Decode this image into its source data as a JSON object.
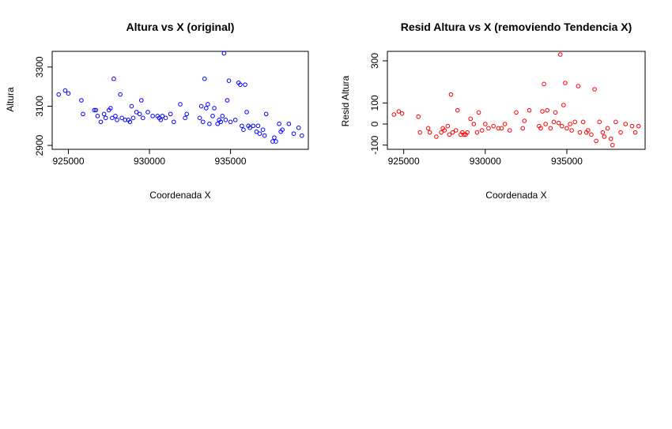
{
  "chart_data": [
    {
      "type": "scatter",
      "title": "Altura vs X (original)",
      "xlabel": "Coordenada X",
      "ylabel": "Altura",
      "xlim": [
        924000,
        939800
      ],
      "ylim": [
        2880,
        3380
      ],
      "xticks": [
        "925000",
        "930000",
        "935000"
      ],
      "xtick_values": [
        925000,
        930000,
        935000
      ],
      "yticks": [
        "2900",
        "3100",
        "3300"
      ],
      "ytick_values": [
        2900,
        3100,
        3300
      ],
      "grid": false,
      "color": "#0000ff",
      "series": [
        {
          "x": [
            924400,
            924800,
            925000,
            925800,
            925900,
            926600,
            926700,
            926800,
            927000,
            927200,
            927300,
            927500,
            927600,
            927700,
            927800,
            927900,
            928000,
            928200,
            928300,
            928500,
            928700,
            928800,
            928900,
            929000,
            929200,
            929400,
            929500,
            929600,
            929900,
            930200,
            930500,
            930600,
            930700,
            930800,
            931000,
            931300,
            931500,
            931900,
            932200,
            932300,
            933100,
            933200,
            933300,
            933400,
            933500,
            933600,
            933700,
            933900,
            934000,
            934200,
            934300,
            934400,
            934500,
            934600,
            934700,
            934800,
            934900,
            935000,
            935300,
            935500,
            935600,
            935700,
            935800,
            935900,
            936000,
            936100,
            936200,
            936400,
            936600,
            936700,
            936800,
            937000,
            937100,
            937200,
            937600,
            937700,
            937800,
            938000,
            938100,
            938200,
            938600,
            938900,
            939200,
            939400
          ],
          "y": [
            3160,
            3180,
            3165,
            3130,
            3060,
            3080,
            3080,
            3050,
            3020,
            3060,
            3040,
            3080,
            3090,
            3040,
            3240,
            3050,
            3030,
            3160,
            3040,
            3030,
            3030,
            3020,
            3100,
            3040,
            3070,
            3060,
            3130,
            3040,
            3070,
            3050,
            3050,
            3040,
            3030,
            3050,
            3040,
            3060,
            3020,
            3110,
            3040,
            3060,
            3040,
            3100,
            3020,
            3240,
            3090,
            3110,
            3010,
            3050,
            3090,
            3010,
            3030,
            3020,
            3050,
            3370,
            3030,
            3130,
            3230,
            3020,
            3030,
            3220,
            3210,
            3000,
            2980,
            3210,
            3070,
            3000,
            2990,
            3000,
            2970,
            3000,
            2960,
            2980,
            2950,
            3060,
            2920,
            2940,
            2920,
            3010,
            2970,
            2980,
            3010,
            2960,
            2990,
            2950
          ]
        }
      ]
    },
    {
      "type": "scatter",
      "title": "Resid Altura vs X (removiendo Tendencia X)",
      "xlabel": "Coordenada X",
      "ylabel": "Resid Altura",
      "xlim": [
        924000,
        939800
      ],
      "ylim": [
        -120,
        345
      ],
      "xticks": [
        "925000",
        "930000",
        "935000"
      ],
      "xtick_values": [
        925000,
        930000,
        935000
      ],
      "yticks": [
        "-100",
        "0",
        "100",
        "300"
      ],
      "ytick_values": [
        -100,
        0,
        100,
        300
      ],
      "grid": false,
      "color": "#ff0000",
      "series": [
        {
          "x": [
            924400,
            924700,
            924900,
            925900,
            926000,
            926500,
            926600,
            927000,
            927300,
            927400,
            927500,
            927700,
            927800,
            927900,
            928000,
            928200,
            928300,
            928500,
            928600,
            928700,
            928800,
            928900,
            929100,
            929300,
            929500,
            929600,
            929800,
            930000,
            930200,
            930500,
            930800,
            931000,
            931200,
            931500,
            931900,
            932300,
            932400,
            932700,
            933300,
            933400,
            933500,
            933600,
            933700,
            933800,
            934000,
            934200,
            934300,
            934500,
            934600,
            934700,
            934800,
            934900,
            935000,
            935200,
            935300,
            935500,
            935700,
            935800,
            936000,
            936200,
            936300,
            936500,
            936700,
            936800,
            937000,
            937200,
            937300,
            937500,
            937700,
            937800,
            938000,
            938300,
            938600,
            939000,
            939200,
            939400
          ],
          "y": [
            45,
            60,
            50,
            35,
            -40,
            -20,
            -40,
            -60,
            -40,
            -20,
            -30,
            -10,
            -50,
            140,
            -40,
            -30,
            65,
            -50,
            -40,
            -50,
            -50,
            -40,
            25,
            0,
            -40,
            55,
            -30,
            0,
            -20,
            -10,
            -20,
            -20,
            0,
            -30,
            55,
            -20,
            15,
            65,
            -10,
            -20,
            60,
            190,
            0,
            65,
            -20,
            10,
            55,
            5,
            330,
            -10,
            90,
            195,
            -20,
            0,
            -30,
            10,
            180,
            -40,
            10,
            -40,
            -30,
            -50,
            165,
            -80,
            10,
            -40,
            -60,
            -20,
            -70,
            -100,
            10,
            -40,
            0,
            -10,
            -40,
            -10
          ]
        }
      ]
    }
  ]
}
